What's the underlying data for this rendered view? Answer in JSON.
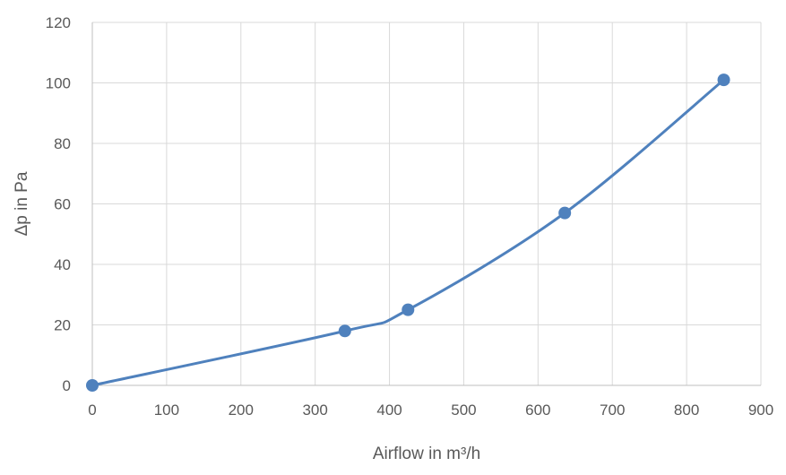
{
  "chart_data": {
    "type": "line",
    "title": "",
    "xlabel": "Airflow in m³/h",
    "ylabel": "Δp in Pa",
    "xlim": [
      0,
      900
    ],
    "ylim": [
      0,
      120
    ],
    "x_ticks": [
      0,
      100,
      200,
      300,
      400,
      500,
      600,
      700,
      800,
      900
    ],
    "y_ticks": [
      0,
      20,
      40,
      60,
      80,
      100,
      120
    ],
    "x_tick_labels": [
      "0",
      "100",
      "200",
      "300",
      "400",
      "500",
      "600",
      "700",
      "800",
      "900"
    ],
    "y_tick_labels": [
      "0",
      "20",
      "40",
      "60",
      "80",
      "100",
      "120"
    ],
    "grid": true,
    "smooth": true,
    "legend": "none",
    "series": [
      {
        "color": "#4f81bd",
        "marker": "circle",
        "points": [
          {
            "x": 0,
            "y": 0
          },
          {
            "x": 340,
            "y": 18
          },
          {
            "x": 425,
            "y": 25
          },
          {
            "x": 636,
            "y": 57
          },
          {
            "x": 850,
            "y": 101
          }
        ]
      }
    ]
  }
}
